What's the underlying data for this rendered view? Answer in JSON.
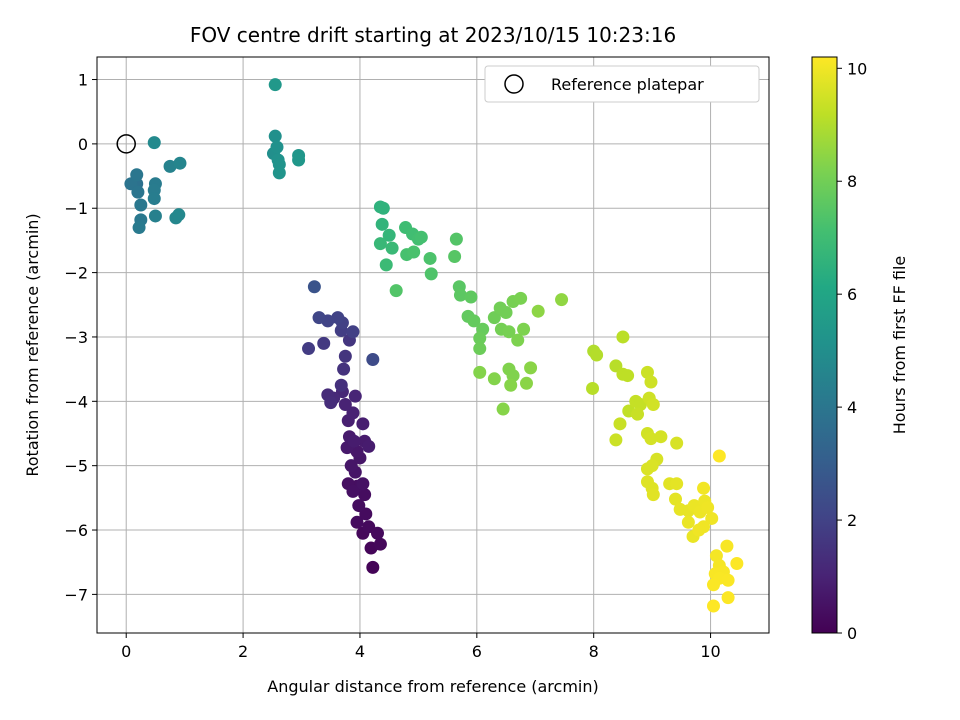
{
  "chart_data": {
    "type": "scatter",
    "title": "FOV centre drift starting at 2023/10/15 10:23:16",
    "xlabel": "Angular distance from reference (arcmin)",
    "ylabel": "Rotation from reference (arcmin)",
    "xlim": [
      -0.5,
      11.0
    ],
    "ylim": [
      -7.6,
      1.35
    ],
    "xticks": [
      0,
      2,
      4,
      6,
      8,
      10
    ],
    "yticks": [
      1,
      0,
      -1,
      -2,
      -3,
      -4,
      -5,
      -6,
      -7
    ],
    "grid": true,
    "legend": {
      "position": "top-right",
      "entries": [
        "Reference platepar"
      ]
    },
    "reference_point": {
      "label": "Reference platepar",
      "x": 0.0,
      "y": 0.0
    },
    "colorbar": {
      "label": "Hours from first FF file",
      "min": 0,
      "max": 10.2,
      "ticks": [
        0,
        2,
        4,
        6,
        8,
        10
      ],
      "colormap": "viridis"
    },
    "points": [
      {
        "x": 4.22,
        "y": -6.58,
        "h": 0.1
      },
      {
        "x": 4.19,
        "y": -6.28,
        "h": 0.15
      },
      {
        "x": 4.35,
        "y": -6.22,
        "h": 0.2
      },
      {
        "x": 4.05,
        "y": -6.05,
        "h": 0.2
      },
      {
        "x": 4.15,
        "y": -5.95,
        "h": 0.25
      },
      {
        "x": 4.3,
        "y": -6.05,
        "h": 0.25
      },
      {
        "x": 3.95,
        "y": -5.88,
        "h": 0.3
      },
      {
        "x": 4.1,
        "y": -5.75,
        "h": 0.3
      },
      {
        "x": 3.98,
        "y": -5.62,
        "h": 0.35
      },
      {
        "x": 4.08,
        "y": -5.45,
        "h": 0.35
      },
      {
        "x": 3.95,
        "y": -5.32,
        "h": 0.4
      },
      {
        "x": 3.8,
        "y": -5.28,
        "h": 0.4
      },
      {
        "x": 3.88,
        "y": -5.4,
        "h": 0.45
      },
      {
        "x": 4.05,
        "y": -5.28,
        "h": 0.5
      },
      {
        "x": 3.92,
        "y": -5.1,
        "h": 0.55
      },
      {
        "x": 3.85,
        "y": -5.0,
        "h": 0.6
      },
      {
        "x": 4.0,
        "y": -4.88,
        "h": 0.6
      },
      {
        "x": 3.95,
        "y": -4.78,
        "h": 0.65
      },
      {
        "x": 3.78,
        "y": -4.72,
        "h": 0.7
      },
      {
        "x": 3.82,
        "y": -4.55,
        "h": 0.75
      },
      {
        "x": 4.08,
        "y": -4.62,
        "h": 0.75
      },
      {
        "x": 4.15,
        "y": -4.7,
        "h": 0.8
      },
      {
        "x": 3.9,
        "y": -4.62,
        "h": 0.8
      },
      {
        "x": 4.05,
        "y": -4.35,
        "h": 0.85
      },
      {
        "x": 3.8,
        "y": -4.3,
        "h": 0.9
      },
      {
        "x": 3.88,
        "y": -4.18,
        "h": 0.95
      },
      {
        "x": 3.75,
        "y": -4.05,
        "h": 1.0
      },
      {
        "x": 3.92,
        "y": -3.92,
        "h": 1.05
      },
      {
        "x": 3.7,
        "y": -3.85,
        "h": 1.1
      },
      {
        "x": 3.55,
        "y": -3.95,
        "h": 1.2
      },
      {
        "x": 3.45,
        "y": -3.9,
        "h": 1.25
      },
      {
        "x": 3.5,
        "y": -4.02,
        "h": 1.3
      },
      {
        "x": 3.68,
        "y": -3.75,
        "h": 1.4
      },
      {
        "x": 3.72,
        "y": -3.5,
        "h": 1.5
      },
      {
        "x": 3.75,
        "y": -3.3,
        "h": 1.55
      },
      {
        "x": 3.82,
        "y": -3.05,
        "h": 1.6
      },
      {
        "x": 3.38,
        "y": -3.1,
        "h": 1.7
      },
      {
        "x": 3.12,
        "y": -3.18,
        "h": 1.8
      },
      {
        "x": 3.68,
        "y": -2.9,
        "h": 1.85
      },
      {
        "x": 3.88,
        "y": -2.92,
        "h": 1.9
      },
      {
        "x": 3.7,
        "y": -2.78,
        "h": 1.95
      },
      {
        "x": 3.62,
        "y": -2.7,
        "h": 2.0
      },
      {
        "x": 3.45,
        "y": -2.75,
        "h": 2.05
      },
      {
        "x": 3.3,
        "y": -2.7,
        "h": 2.1
      },
      {
        "x": 4.22,
        "y": -3.35,
        "h": 2.3
      },
      {
        "x": 3.22,
        "y": -2.22,
        "h": 2.6
      },
      {
        "x": 0.18,
        "y": -0.62,
        "h": 3.8
      },
      {
        "x": 0.08,
        "y": -0.62,
        "h": 3.9
      },
      {
        "x": 0.2,
        "y": -0.75,
        "h": 3.95
      },
      {
        "x": 0.18,
        "y": -0.48,
        "h": 4.0
      },
      {
        "x": 0.25,
        "y": -0.95,
        "h": 4.05
      },
      {
        "x": 0.25,
        "y": -1.18,
        "h": 4.1
      },
      {
        "x": 0.22,
        "y": -1.3,
        "h": 4.15
      },
      {
        "x": 0.5,
        "y": -0.62,
        "h": 4.2
      },
      {
        "x": 0.48,
        "y": -0.72,
        "h": 4.25
      },
      {
        "x": 0.48,
        "y": -0.85,
        "h": 4.3
      },
      {
        "x": 0.5,
        "y": -1.12,
        "h": 4.4
      },
      {
        "x": 0.75,
        "y": -0.35,
        "h": 4.5
      },
      {
        "x": 0.92,
        "y": -0.3,
        "h": 4.6
      },
      {
        "x": 0.85,
        "y": -1.15,
        "h": 4.7
      },
      {
        "x": 0.9,
        "y": -1.1,
        "h": 4.75
      },
      {
        "x": 0.48,
        "y": 0.02,
        "h": 4.8
      },
      {
        "x": 2.52,
        "y": -0.15,
        "h": 5.0
      },
      {
        "x": 2.55,
        "y": 0.12,
        "h": 5.05
      },
      {
        "x": 2.58,
        "y": -0.05,
        "h": 5.1
      },
      {
        "x": 2.6,
        "y": -0.25,
        "h": 5.15
      },
      {
        "x": 2.62,
        "y": -0.32,
        "h": 5.2
      },
      {
        "x": 2.62,
        "y": -0.45,
        "h": 5.25
      },
      {
        "x": 2.95,
        "y": -0.18,
        "h": 5.3
      },
      {
        "x": 2.95,
        "y": -0.25,
        "h": 5.35
      },
      {
        "x": 2.55,
        "y": 0.92,
        "h": 5.4
      },
      {
        "x": 4.35,
        "y": -0.98,
        "h": 6.5
      },
      {
        "x": 4.4,
        "y": -1.0,
        "h": 6.55
      },
      {
        "x": 4.38,
        "y": -1.25,
        "h": 6.6
      },
      {
        "x": 4.5,
        "y": -1.42,
        "h": 6.7
      },
      {
        "x": 4.35,
        "y": -1.55,
        "h": 6.8
      },
      {
        "x": 4.55,
        "y": -1.62,
        "h": 6.85
      },
      {
        "x": 4.45,
        "y": -1.88,
        "h": 6.9
      },
      {
        "x": 4.78,
        "y": -1.3,
        "h": 7.0
      },
      {
        "x": 4.9,
        "y": -1.4,
        "h": 7.05
      },
      {
        "x": 5.0,
        "y": -1.48,
        "h": 7.1
      },
      {
        "x": 5.05,
        "y": -1.45,
        "h": 7.15
      },
      {
        "x": 4.8,
        "y": -1.72,
        "h": 7.2
      },
      {
        "x": 4.92,
        "y": -1.68,
        "h": 7.25
      },
      {
        "x": 5.2,
        "y": -1.78,
        "h": 7.3
      },
      {
        "x": 5.22,
        "y": -2.02,
        "h": 7.35
      },
      {
        "x": 4.62,
        "y": -2.28,
        "h": 7.4
      },
      {
        "x": 5.65,
        "y": -1.48,
        "h": 7.45
      },
      {
        "x": 5.62,
        "y": -1.75,
        "h": 7.5
      },
      {
        "x": 5.7,
        "y": -2.22,
        "h": 7.55
      },
      {
        "x": 5.72,
        "y": -2.35,
        "h": 7.6
      },
      {
        "x": 5.9,
        "y": -2.38,
        "h": 7.65
      },
      {
        "x": 5.85,
        "y": -2.68,
        "h": 7.7
      },
      {
        "x": 5.95,
        "y": -2.75,
        "h": 7.75
      },
      {
        "x": 6.1,
        "y": -2.88,
        "h": 7.8
      },
      {
        "x": 6.05,
        "y": -3.02,
        "h": 7.85
      },
      {
        "x": 6.05,
        "y": -3.18,
        "h": 7.9
      },
      {
        "x": 6.3,
        "y": -2.7,
        "h": 7.95
      },
      {
        "x": 6.4,
        "y": -2.55,
        "h": 8.0
      },
      {
        "x": 6.5,
        "y": -2.62,
        "h": 8.0
      },
      {
        "x": 6.42,
        "y": -2.88,
        "h": 8.05
      },
      {
        "x": 6.55,
        "y": -2.92,
        "h": 8.1
      },
      {
        "x": 6.62,
        "y": -2.45,
        "h": 8.1
      },
      {
        "x": 6.75,
        "y": -2.4,
        "h": 8.15
      },
      {
        "x": 6.8,
        "y": -2.88,
        "h": 8.2
      },
      {
        "x": 6.7,
        "y": -3.05,
        "h": 8.2
      },
      {
        "x": 6.55,
        "y": -3.5,
        "h": 8.25
      },
      {
        "x": 6.62,
        "y": -3.6,
        "h": 8.25
      },
      {
        "x": 6.3,
        "y": -3.65,
        "h": 8.3
      },
      {
        "x": 6.05,
        "y": -3.55,
        "h": 8.3
      },
      {
        "x": 6.45,
        "y": -4.12,
        "h": 8.35
      },
      {
        "x": 6.58,
        "y": -3.75,
        "h": 8.35
      },
      {
        "x": 6.85,
        "y": -3.72,
        "h": 8.4
      },
      {
        "x": 6.92,
        "y": -3.48,
        "h": 8.4
      },
      {
        "x": 7.05,
        "y": -2.6,
        "h": 8.45
      },
      {
        "x": 7.45,
        "y": -2.42,
        "h": 8.5
      },
      {
        "x": 8.0,
        "y": -3.22,
        "h": 9.0
      },
      {
        "x": 8.05,
        "y": -3.28,
        "h": 9.05
      },
      {
        "x": 7.98,
        "y": -3.8,
        "h": 9.1
      },
      {
        "x": 8.38,
        "y": -3.45,
        "h": 9.1
      },
      {
        "x": 8.5,
        "y": -3.0,
        "h": 9.15
      },
      {
        "x": 8.5,
        "y": -3.58,
        "h": 9.2
      },
      {
        "x": 8.58,
        "y": -3.6,
        "h": 9.2
      },
      {
        "x": 8.6,
        "y": -4.15,
        "h": 9.25
      },
      {
        "x": 8.72,
        "y": -4.0,
        "h": 9.3
      },
      {
        "x": 8.8,
        "y": -4.05,
        "h": 9.3
      },
      {
        "x": 8.75,
        "y": -4.2,
        "h": 9.35
      },
      {
        "x": 8.45,
        "y": -4.35,
        "h": 9.35
      },
      {
        "x": 8.38,
        "y": -4.6,
        "h": 9.4
      },
      {
        "x": 8.92,
        "y": -3.55,
        "h": 9.4
      },
      {
        "x": 8.98,
        "y": -3.7,
        "h": 9.45
      },
      {
        "x": 8.95,
        "y": -3.95,
        "h": 9.45
      },
      {
        "x": 9.02,
        "y": -4.05,
        "h": 9.5
      },
      {
        "x": 8.92,
        "y": -4.5,
        "h": 9.5
      },
      {
        "x": 8.98,
        "y": -4.58,
        "h": 9.55
      },
      {
        "x": 9.15,
        "y": -4.55,
        "h": 9.55
      },
      {
        "x": 9.42,
        "y": -4.65,
        "h": 9.6
      },
      {
        "x": 9.08,
        "y": -4.9,
        "h": 9.6
      },
      {
        "x": 8.92,
        "y": -5.05,
        "h": 9.65
      },
      {
        "x": 9.0,
        "y": -5.0,
        "h": 9.65
      },
      {
        "x": 8.92,
        "y": -5.25,
        "h": 9.7
      },
      {
        "x": 9.0,
        "y": -5.35,
        "h": 9.7
      },
      {
        "x": 9.02,
        "y": -5.45,
        "h": 9.75
      },
      {
        "x": 9.3,
        "y": -5.28,
        "h": 9.75
      },
      {
        "x": 9.42,
        "y": -5.28,
        "h": 9.8
      },
      {
        "x": 9.4,
        "y": -5.52,
        "h": 9.8
      },
      {
        "x": 9.48,
        "y": -5.68,
        "h": 9.85
      },
      {
        "x": 9.62,
        "y": -5.7,
        "h": 9.85
      },
      {
        "x": 9.62,
        "y": -5.88,
        "h": 9.9
      },
      {
        "x": 9.7,
        "y": -6.1,
        "h": 9.9
      },
      {
        "x": 9.72,
        "y": -5.62,
        "h": 9.92
      },
      {
        "x": 9.82,
        "y": -5.72,
        "h": 9.95
      },
      {
        "x": 9.9,
        "y": -5.55,
        "h": 9.95
      },
      {
        "x": 9.95,
        "y": -5.65,
        "h": 9.97
      },
      {
        "x": 9.88,
        "y": -5.95,
        "h": 10.0
      },
      {
        "x": 9.8,
        "y": -6.0,
        "h": 10.0
      },
      {
        "x": 10.02,
        "y": -5.82,
        "h": 10.0
      },
      {
        "x": 9.88,
        "y": -5.35,
        "h": 10.02
      },
      {
        "x": 10.1,
        "y": -6.4,
        "h": 10.05
      },
      {
        "x": 10.15,
        "y": -6.55,
        "h": 10.08
      },
      {
        "x": 10.28,
        "y": -6.25,
        "h": 10.1
      },
      {
        "x": 10.22,
        "y": -6.65,
        "h": 10.12
      },
      {
        "x": 10.08,
        "y": -6.68,
        "h": 10.12
      },
      {
        "x": 10.15,
        "y": -6.75,
        "h": 10.14
      },
      {
        "x": 10.05,
        "y": -6.85,
        "h": 10.15
      },
      {
        "x": 10.3,
        "y": -6.78,
        "h": 10.16
      },
      {
        "x": 10.45,
        "y": -6.52,
        "h": 10.18
      },
      {
        "x": 10.3,
        "y": -7.05,
        "h": 10.19
      },
      {
        "x": 10.05,
        "y": -7.18,
        "h": 10.2
      },
      {
        "x": 10.15,
        "y": -4.85,
        "h": 10.2
      }
    ]
  }
}
